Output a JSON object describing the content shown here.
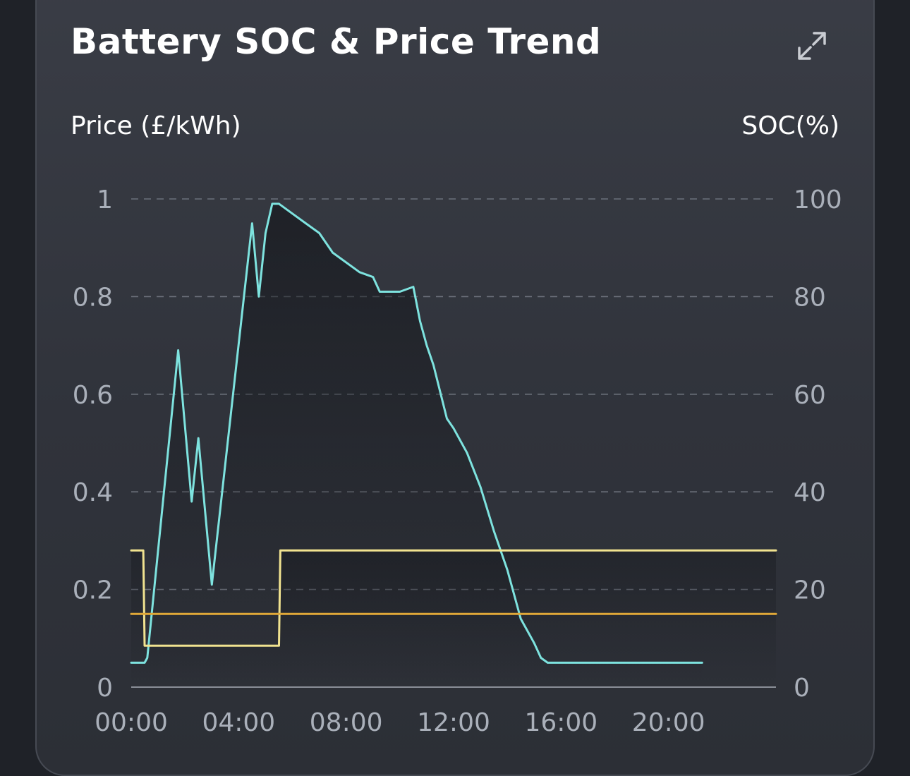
{
  "card": {
    "title": "Battery SOC & Price Trend",
    "expand_icon": "expand-icon"
  },
  "axes": {
    "left_title": "Price (£/kWh)",
    "right_title": "SOC(%)"
  },
  "colors": {
    "soc_line": "#7ee3df",
    "price_line": "#f1e390",
    "price_ref_line": "#e0a838",
    "grid": "#6b707a",
    "background": "#1f2228"
  },
  "chart_data": {
    "type": "line",
    "title": "Battery SOC & Price Trend",
    "x_ticks": [
      "00:00",
      "04:00",
      "08:00",
      "12:00",
      "16:00",
      "20:00"
    ],
    "x_range_hours": [
      0,
      24
    ],
    "left_axis": {
      "label": "Price (£/kWh)",
      "range": [
        0,
        1
      ],
      "ticks": [
        "0",
        "0.2",
        "0.4",
        "0.6",
        "0.8",
        "1"
      ]
    },
    "right_axis": {
      "label": "SOC(%)",
      "range": [
        0,
        100
      ],
      "ticks": [
        "0",
        "20",
        "40",
        "60",
        "80",
        "100"
      ]
    },
    "grid": "horizontal dashed",
    "series": [
      {
        "name": "SOC",
        "axis": "right",
        "x_hours": [
          0.0,
          0.5,
          0.6,
          1.75,
          2.25,
          2.5,
          3.0,
          4.5,
          4.75,
          5.0,
          5.25,
          5.5,
          6.0,
          6.5,
          7.0,
          7.5,
          8.0,
          8.5,
          9.0,
          9.25,
          9.5,
          10.0,
          10.5,
          10.75,
          11.0,
          11.25,
          11.75,
          12.0,
          12.5,
          13.0,
          13.5,
          14.0,
          14.5,
          15.0,
          15.25,
          15.5,
          21.25
        ],
        "values": [
          5,
          5,
          6,
          69,
          38,
          51,
          21,
          95,
          80,
          93,
          99,
          99,
          97,
          95,
          93,
          89,
          87,
          85,
          84,
          81,
          81,
          81,
          82,
          75,
          70,
          66,
          55,
          53,
          48,
          41,
          32,
          24,
          14,
          9,
          6,
          5,
          5
        ]
      },
      {
        "name": "Price",
        "axis": "left",
        "x_hours": [
          0.0,
          0.45,
          0.5,
          5.5,
          5.55,
          24.0
        ],
        "values": [
          0.28,
          0.28,
          0.085,
          0.085,
          0.28,
          0.28
        ]
      },
      {
        "name": "Price reference",
        "axis": "left",
        "x_hours": [
          0.0,
          24.0
        ],
        "values": [
          0.15,
          0.15
        ]
      }
    ]
  }
}
